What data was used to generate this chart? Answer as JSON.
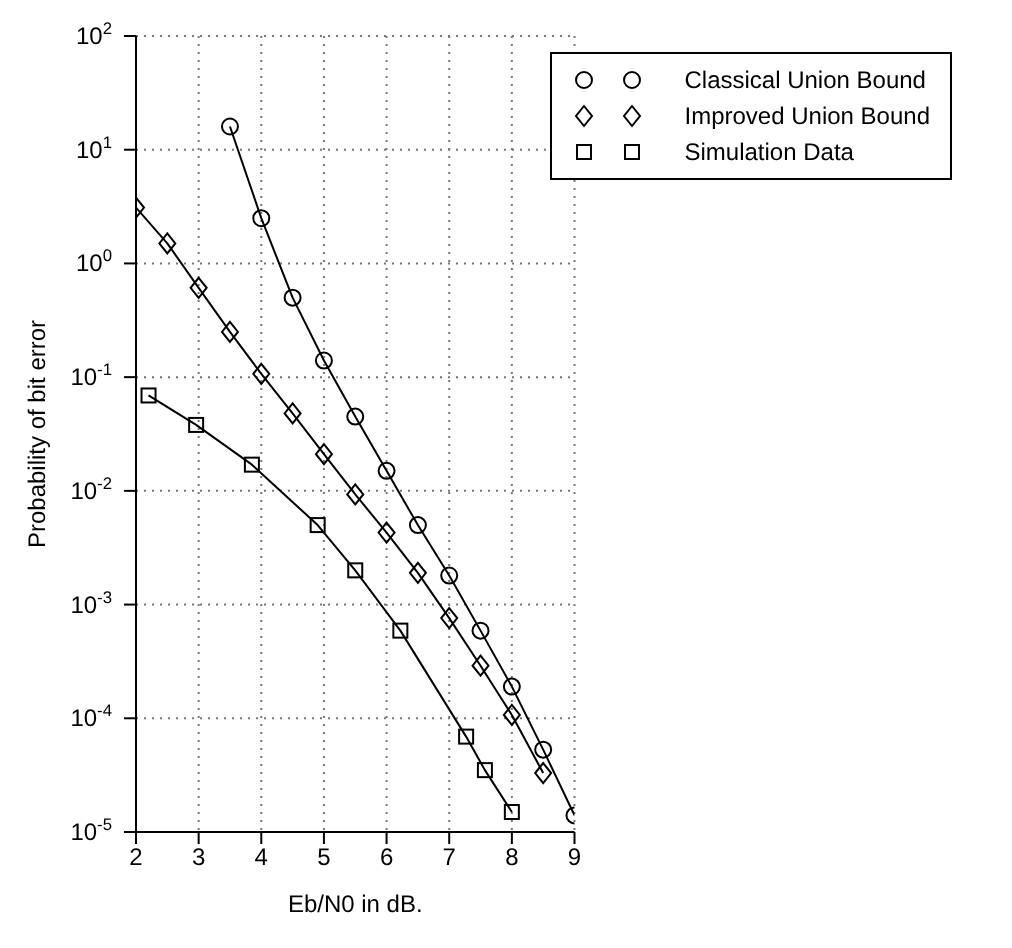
{
  "chart_data": {
    "type": "line",
    "xlabel": "Eb/N0 in dB.",
    "ylabel": "Probability of bit error",
    "log": "y",
    "grid": true,
    "legend": "top right",
    "line_style": "solid",
    "xlim": [
      2,
      9
    ],
    "xticks": [
      2,
      3,
      4,
      5,
      6,
      7,
      8,
      9
    ],
    "ylim": [
      1e-05,
      100
    ],
    "yticks": [
      {
        "value": 1e-05,
        "label": "10$^{-5}$"
      },
      {
        "value": 0.0001,
        "label": "10$^{-4}$"
      },
      {
        "value": 0.001,
        "label": "10$^{-3}$"
      },
      {
        "value": 0.01,
        "label": "10$^{-2}$"
      },
      {
        "value": 0.1,
        "label": "10$^{-1}$"
      },
      {
        "value": 1,
        "label": "10$^{0}$"
      },
      {
        "value": 10,
        "label": "10$^{1}$"
      },
      {
        "value": 100,
        "label": "10$^{2}$"
      }
    ],
    "series": [
      {
        "name": "Classical Union Bound",
        "color": "#000000",
        "marker": "circle",
        "x": [
          3.5,
          4,
          4.5,
          5,
          5.5,
          6,
          6.5,
          7,
          7.5,
          8,
          8.5,
          9
        ],
        "values": [
          16,
          2.5,
          0.5,
          0.14,
          0.045,
          0.015,
          0.005,
          0.0018,
          0.00059,
          0.00019,
          5.3e-05,
          1.4e-05
        ]
      },
      {
        "name": "Improved Union Bound",
        "color": "#000000",
        "marker": "diamond",
        "x": [
          2,
          2.5,
          3,
          3.5,
          4,
          4.5,
          5,
          5.5,
          6,
          6.5,
          7,
          7.5,
          8,
          8.5
        ],
        "values": [
          3.1,
          1.5,
          0.61,
          0.25,
          0.107,
          0.048,
          0.021,
          0.0093,
          0.0043,
          0.0019,
          0.00076,
          0.00029,
          0.000107,
          3.3e-05
        ]
      },
      {
        "name": "Simulation Data",
        "color": "#000000",
        "marker": "square",
        "x": [
          2.2,
          2.96,
          3.85,
          4.9,
          5.5,
          6.22,
          7.27,
          7.57,
          8
        ],
        "values": [
          0.069,
          0.038,
          0.017,
          0.005,
          0.002,
          0.00059,
          6.9e-05,
          3.5e-05,
          1.5e-05
        ]
      }
    ]
  }
}
